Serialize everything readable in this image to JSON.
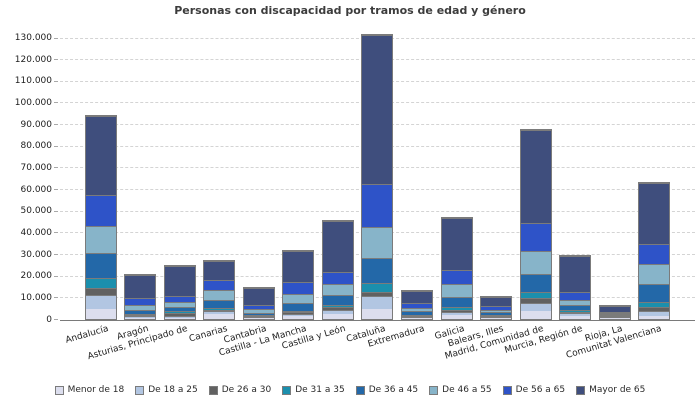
{
  "title": "Personas con discapacidad por tramos de edad y género",
  "chart_data": {
    "type": "bar",
    "stacked": true,
    "title": "Personas con discapacidad por tramos de edad y género",
    "xlabel": "",
    "ylabel": "",
    "ylim": [
      0,
      130000
    ],
    "y_tick_step": 10000,
    "y_tick_labels": [
      "0",
      "10.000",
      "20.000",
      "30.000",
      "40.000",
      "50.000",
      "60.000",
      "70.000",
      "80.000",
      "90.000",
      "100.000",
      "110.000",
      "120.000",
      "130.000"
    ],
    "grid": "horizontal-dashed",
    "legend_position": "bottom",
    "categories": [
      "Andalucía",
      "Aragón",
      "Asturias, Principado de",
      "Canarias",
      "Cantabria",
      "Castilla - La Mancha",
      "Castilla y León",
      "Cataluña",
      "Extremadura",
      "Galicia",
      "Balears, Illes",
      "Madrid, Comunidad de",
      "Murcia, Región de",
      "Rioja, La",
      "Comunitat Valenciana"
    ],
    "series": [
      {
        "name": "Menor de 18",
        "color": "#dcdeee",
        "values": [
          4800,
          600,
          600,
          2200,
          600,
          1200,
          2100,
          4700,
          450,
          1700,
          550,
          3600,
          1400,
          400,
          1500
        ]
      },
      {
        "name": "De 18 a 25",
        "color": "#b2c6e2",
        "values": [
          6200,
          600,
          800,
          1500,
          450,
          1200,
          2100,
          5800,
          450,
          1500,
          600,
          3700,
          1300,
          350,
          2300
        ]
      },
      {
        "name": "De 26 a 30",
        "color": "#616161",
        "values": [
          3400,
          600,
          1200,
          600,
          200,
          700,
          1200,
          2100,
          250,
          1100,
          350,
          2400,
          700,
          150,
          1900
        ]
      },
      {
        "name": "De 31 a 35",
        "color": "#1b8fad",
        "values": [
          4600,
          300,
          900,
          900,
          200,
          700,
          1200,
          4100,
          350,
          1200,
          350,
          2900,
          700,
          200,
          2100
        ]
      },
      {
        "name": "De 36 a 45",
        "color": "#2368a8",
        "values": [
          11600,
          1850,
          1900,
          3700,
          900,
          3500,
          4400,
          11600,
          1700,
          4500,
          1000,
          8100,
          2150,
          500,
          8600
        ]
      },
      {
        "name": "De 46 a 55",
        "color": "#87b4c9",
        "values": [
          12300,
          2300,
          2600,
          4600,
          1850,
          4200,
          5100,
          14100,
          1700,
          6200,
          1050,
          10800,
          2750,
          450,
          8800
        ]
      },
      {
        "name": "De 56 a 65",
        "color": "#2e53c8",
        "values": [
          14300,
          3100,
          2600,
          4650,
          1850,
          5400,
          5700,
          20000,
          2300,
          6600,
          1900,
          12800,
          3650,
          650,
          9400
        ]
      },
      {
        "name": "Mayor de 65",
        "color": "#3f4e7d",
        "values": [
          36800,
          10750,
          13700,
          8750,
          7550,
          14700,
          23400,
          68600,
          5600,
          24100,
          4300,
          43100,
          16550,
          2400,
          28300
        ]
      }
    ]
  },
  "colors": {
    "background": "#ffffff",
    "gridline": "#d4d4d4",
    "axis_line": "#7a7a7a",
    "segment_border": "#7b7b7b",
    "title_text": "#3c3c3c",
    "label_text": "#1d1d1d"
  }
}
